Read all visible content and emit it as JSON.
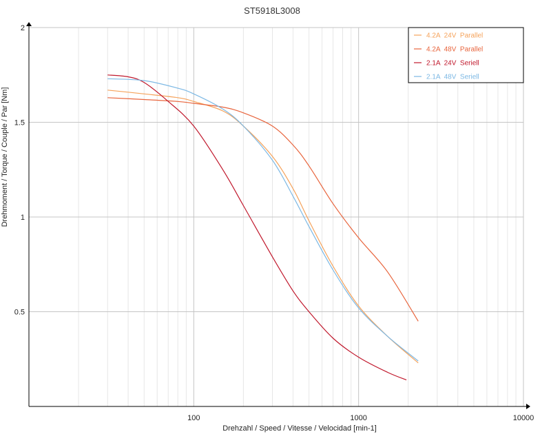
{
  "chart_data": {
    "type": "line",
    "title": "ST5918L3008",
    "xlabel": "Drehzahl / Speed / Vitesse / Velocidad [min-1]",
    "ylabel": "Drehmoment / Torque / Couple / Par [Nm]",
    "x_scale": "log",
    "xlim": [
      10,
      10000
    ],
    "ylim": [
      0,
      2
    ],
    "x_ticks": [
      100,
      1000,
      10000
    ],
    "x_tick_labels": [
      "100",
      "1000",
      "10000"
    ],
    "y_ticks": [
      0.5,
      1,
      1.5,
      2
    ],
    "y_tick_labels": [
      "0.5",
      "1",
      "1.5",
      "2"
    ],
    "grid": true,
    "legend_position": "top-right",
    "series": [
      {
        "name": "4.2A  24V  Parallel",
        "color": "#f5a25a",
        "x": [
          30,
          50,
          80,
          100,
          150,
          200,
          300,
          400,
          500,
          700,
          1000,
          1500,
          2300
        ],
        "y": [
          1.67,
          1.65,
          1.63,
          1.61,
          1.56,
          1.48,
          1.32,
          1.15,
          0.98,
          0.74,
          0.53,
          0.37,
          0.23
        ]
      },
      {
        "name": "4.2A  48V  Parallel",
        "color": "#e8643c",
        "x": [
          30,
          50,
          80,
          100,
          150,
          200,
          300,
          400,
          500,
          700,
          1000,
          1500,
          2300
        ],
        "y": [
          1.63,
          1.62,
          1.61,
          1.6,
          1.58,
          1.55,
          1.48,
          1.38,
          1.27,
          1.07,
          0.89,
          0.71,
          0.45
        ]
      },
      {
        "name": "2.1A  24V  Seriell",
        "color": "#c0182c",
        "x": [
          30,
          40,
          50,
          70,
          100,
          150,
          200,
          300,
          400,
          500,
          700,
          1000,
          1500,
          1950
        ],
        "y": [
          1.75,
          1.74,
          1.71,
          1.61,
          1.48,
          1.25,
          1.06,
          0.79,
          0.61,
          0.5,
          0.36,
          0.26,
          0.18,
          0.14
        ]
      },
      {
        "name": "2.1A  48V  Seriell",
        "color": "#7cb8e4",
        "x": [
          30,
          50,
          80,
          100,
          150,
          200,
          300,
          400,
          500,
          700,
          1000,
          1500,
          2300
        ],
        "y": [
          1.73,
          1.72,
          1.68,
          1.65,
          1.57,
          1.48,
          1.3,
          1.11,
          0.95,
          0.72,
          0.52,
          0.37,
          0.24
        ]
      }
    ]
  }
}
